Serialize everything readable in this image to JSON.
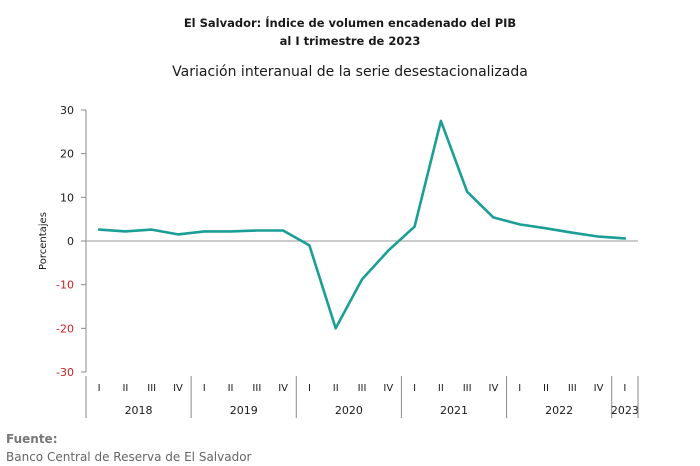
{
  "chart_data": {
    "type": "line",
    "title": "El Salvador: Índice de volumen encadenado del PIB",
    "title_line2": "al I trimestre de 2023",
    "subtitle": "Variación interanual de la serie desestacionalizada",
    "ylabel": "Porcentajes",
    "ylim": [
      -30,
      30
    ],
    "yticks": [
      30,
      20,
      10,
      0,
      -10,
      -20,
      -30
    ],
    "quarters": [
      "I",
      "II",
      "III",
      "IV",
      "I",
      "II",
      "III",
      "IV",
      "I",
      "II",
      "III",
      "IV",
      "I",
      "II",
      "III",
      "IV",
      "I",
      "II",
      "III",
      "IV",
      "I"
    ],
    "years": [
      {
        "label": "2018",
        "count": 4
      },
      {
        "label": "2019",
        "count": 4
      },
      {
        "label": "2020",
        "count": 4
      },
      {
        "label": "2021",
        "count": 4
      },
      {
        "label": "2022",
        "count": 4
      },
      {
        "label": "2023",
        "count": 1
      }
    ],
    "values": [
      2.6,
      2.2,
      2.6,
      1.5,
      2.2,
      2.2,
      2.4,
      2.4,
      -1.0,
      -20.0,
      -8.8,
      -2.2,
      3.3,
      27.5,
      11.3,
      5.4,
      3.8,
      2.9,
      1.9,
      1.0,
      0.6
    ],
    "colors": {
      "line": "#1a9e96",
      "negative_tick": "#cc2222",
      "axis": "#8a8a8a",
      "grid": "#dddddd"
    }
  },
  "footer": {
    "label": "Fuente:",
    "source": "Banco Central de Reserva de El Salvador"
  }
}
